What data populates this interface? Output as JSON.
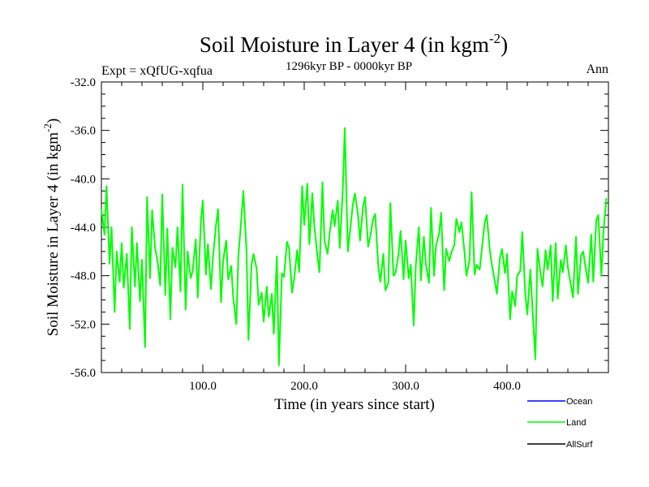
{
  "chart_data": {
    "type": "line",
    "title": "Soil Moisture in Layer 4 (in kgm",
    "title_superscript": "-2",
    "title_close": ")",
    "subtitle_left": "Expt = xQfUG-xqfua",
    "subtitle_center": "1296kyr BP - 0000kyr BP",
    "subtitle_right": "Ann",
    "xlabel": "Time (in years since start)",
    "ylabel": "Soil Moisture in Layer 4 (in kgm",
    "ylabel_superscript": "-2",
    "ylabel_close": ")",
    "xlim": [
      0,
      500
    ],
    "ylim": [
      -56,
      -32
    ],
    "xticks": [
      100,
      200,
      300,
      400
    ],
    "xtick_labels": [
      "100.0",
      "200.0",
      "300.0",
      "400.0"
    ],
    "yticks": [
      -56,
      -52,
      -48,
      -44,
      -40,
      -36,
      -32
    ],
    "ytick_labels": [
      "-56.0",
      "-52.0",
      "-48.0",
      "-44.0",
      "-40.0",
      "-36.0",
      "-32.0"
    ],
    "legend": [
      {
        "name": "Ocean",
        "color": "#0000ff"
      },
      {
        "name": "Land",
        "color": "#00ff00"
      },
      {
        "name": "AllSurf",
        "color": "#000000"
      }
    ],
    "series": [
      {
        "name": "Land",
        "color": "#00ff00",
        "x": [
          0,
          3,
          5,
          8,
          10,
          13,
          15,
          18,
          20,
          22,
          25,
          28,
          30,
          33,
          35,
          38,
          40,
          43,
          45,
          48,
          50,
          53,
          55,
          58,
          60,
          63,
          65,
          68,
          70,
          73,
          75,
          78,
          80,
          83,
          85,
          88,
          90,
          93,
          95,
          98,
          100,
          103,
          105,
          108,
          110,
          113,
          115,
          118,
          120,
          123,
          125,
          128,
          130,
          133,
          135,
          138,
          140,
          143,
          145,
          148,
          150,
          153,
          155,
          158,
          160,
          163,
          165,
          168,
          170,
          173,
          175,
          178,
          180,
          183,
          185,
          188,
          190,
          193,
          195,
          198,
          200,
          203,
          205,
          208,
          210,
          213,
          215,
          218,
          220,
          223,
          225,
          228,
          230,
          233,
          235,
          238,
          240,
          243,
          245,
          248,
          250,
          253,
          255,
          258,
          260,
          263,
          265,
          268,
          270,
          273,
          275,
          278,
          280,
          283,
          285,
          288,
          290,
          293,
          295,
          298,
          300,
          303,
          305,
          308,
          310,
          313,
          315,
          318,
          320,
          323,
          325,
          328,
          330,
          333,
          335,
          338,
          340,
          343,
          345,
          348,
          350,
          353,
          355,
          358,
          360,
          363,
          365,
          368,
          370,
          373,
          375,
          378,
          380,
          383,
          385,
          388,
          390,
          393,
          395,
          398,
          400,
          403,
          405,
          408,
          410,
          413,
          415,
          418,
          420,
          423,
          425,
          428,
          430,
          433,
          435,
          438,
          440,
          443,
          445,
          448,
          450,
          453,
          455,
          458,
          460,
          463,
          465,
          468,
          470,
          473,
          475,
          478,
          480,
          483,
          485,
          488,
          490,
          493,
          495,
          498
        ],
        "values": [
          -42.5,
          -44.6,
          -40.6,
          -47.0,
          -44.0,
          -51.0,
          -46.0,
          -48.5,
          -45.3,
          -49.0,
          -46.2,
          -52.4,
          -44.0,
          -48.9,
          -45.3,
          -50.1,
          -46.7,
          -53.9,
          -41.5,
          -48.2,
          -42.6,
          -45.8,
          -46.6,
          -48.8,
          -41.3,
          -49.6,
          -44.1,
          -51.6,
          -45.7,
          -47.3,
          -44.0,
          -49.3,
          -40.5,
          -50.8,
          -46.0,
          -48.2,
          -47.6,
          -45.0,
          -49.8,
          -43.6,
          -41.8,
          -47.9,
          -45.4,
          -49.1,
          -46.5,
          -43.8,
          -42.5,
          -50.2,
          -46.8,
          -45.1,
          -48.3,
          -47.2,
          -49.8,
          -52.0,
          -46.4,
          -43.3,
          -41.0,
          -45.9,
          -53.3,
          -47.1,
          -46.2,
          -47.4,
          -50.4,
          -49.4,
          -51.8,
          -48.9,
          -51.4,
          -49.5,
          -52.8,
          -46.4,
          -55.4,
          -47.8,
          -48.1,
          -45.2,
          -45.7,
          -49.4,
          -48.3,
          -45.9,
          -47.7,
          -40.6,
          -43.8,
          -40.4,
          -45.4,
          -41.2,
          -43.9,
          -46.4,
          -47.7,
          -40.3,
          -45.1,
          -46.2,
          -44.5,
          -42.6,
          -43.9,
          -41.8,
          -45.7,
          -41.0,
          -35.8,
          -46.0,
          -44.4,
          -42.1,
          -41.2,
          -43.0,
          -45.1,
          -42.3,
          -41.5,
          -45.6,
          -44.8,
          -43.3,
          -42.9,
          -47.2,
          -48.5,
          -46.2,
          -49.2,
          -48.6,
          -42.0,
          -48.0,
          -47.8,
          -46.2,
          -44.3,
          -48.3,
          -45.1,
          -48.2,
          -47.1,
          -52.1,
          -47.2,
          -44.0,
          -48.4,
          -44.8,
          -47.1,
          -48.6,
          -42.4,
          -48.0,
          -45.5,
          -44.5,
          -42.8,
          -49.2,
          -45.8,
          -46.8,
          -46.1,
          -45.5,
          -43.3,
          -44.4,
          -43.6,
          -46.0,
          -48.0,
          -46.7,
          -41.1,
          -47.9,
          -47.1,
          -47.5,
          -45.9,
          -43.6,
          -43.0,
          -45.9,
          -47.1,
          -48.5,
          -49.5,
          -46.5,
          -45.8,
          -47.8,
          -46.2,
          -51.6,
          -49.3,
          -50.5,
          -48.0,
          -47.6,
          -44.4,
          -49.5,
          -51.2,
          -47.5,
          -50.7,
          -54.9,
          -45.8,
          -47.8,
          -48.9,
          -45.9,
          -47.5,
          -45.5,
          -50.1,
          -45.3,
          -49.9,
          -46.7,
          -47.7,
          -45.5,
          -47.3,
          -48.8,
          -49.8,
          -44.8,
          -49.5,
          -46.3,
          -46.0,
          -47.6,
          -48.6,
          -44.6,
          -48.5,
          -43.4,
          -43.0,
          -48.0,
          -44.4,
          -41.6
        ]
      }
    ]
  }
}
